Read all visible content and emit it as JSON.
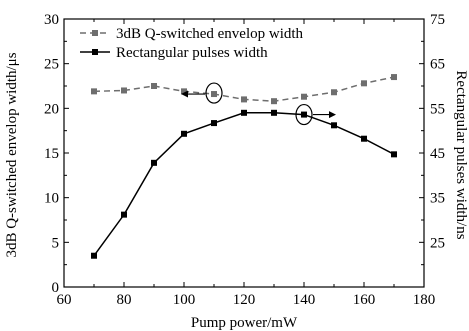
{
  "chart_data": {
    "type": "line",
    "x": [
      70,
      80,
      90,
      100,
      110,
      120,
      130,
      140,
      150,
      160,
      170
    ],
    "xlabel": "Pump power/mW",
    "xlim": [
      60,
      180
    ],
    "xticks": [
      "60",
      "80",
      "100",
      "120",
      "140",
      "160",
      "180"
    ],
    "ylabel_left": "3dB Q-switched envelop width/μs",
    "ylim_left": [
      0,
      30
    ],
    "yticks_left": [
      "0",
      "5",
      "10",
      "15",
      "20",
      "25",
      "30"
    ],
    "ylabel_right": "Rectangular pulses width/ns",
    "ylim_right": [
      15,
      75
    ],
    "yticks_right": [
      "25",
      "35",
      "45",
      "55",
      "65",
      "75"
    ],
    "series": [
      {
        "name": "3dB Q-switched envelop width",
        "axis": "left",
        "style": "dashed",
        "color": "#6e6e6e",
        "values": [
          21.9,
          22.0,
          22.5,
          21.9,
          21.6,
          21.0,
          20.8,
          21.3,
          21.8,
          22.8,
          23.5
        ]
      },
      {
        "name": "Rectangular pulses width",
        "axis": "right",
        "style": "solid",
        "color": "#000000",
        "values": [
          22.0,
          31.2,
          42.8,
          49.3,
          51.7,
          54.0,
          54.0,
          53.6,
          51.2,
          48.2,
          44.7
        ]
      }
    ],
    "grid": false,
    "legend": "top-left"
  }
}
